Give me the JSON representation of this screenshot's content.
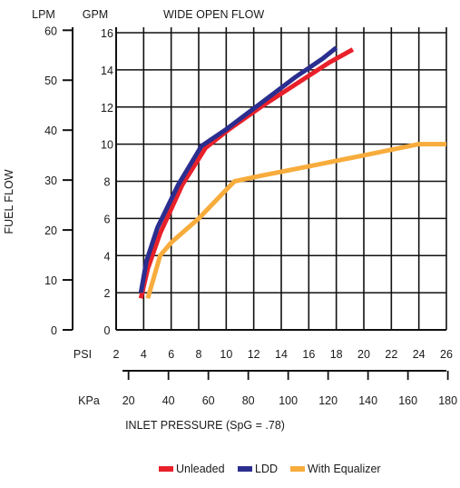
{
  "chart_data": {
    "type": "line",
    "title": "WIDE OPEN FLOW",
    "ylabel": "FUEL FLOW",
    "xlabel": "INLET PRESSURE (SpG = .78)",
    "y_axis_gpm": {
      "unit": "GPM",
      "range": [
        0,
        16
      ],
      "ticks": [
        "0",
        "2",
        "4",
        "6",
        "8",
        "10",
        "12",
        "14",
        "16"
      ]
    },
    "y_axis_lpm": {
      "unit": "LPM",
      "range": [
        0,
        60.6
      ],
      "ticks": [
        {
          "label": "0",
          "value": 0
        },
        {
          "label": "10",
          "value": 10
        },
        {
          "label": "20",
          "value": 20
        },
        {
          "label": "30",
          "value": 30
        },
        {
          "label": "40",
          "value": 40
        },
        {
          "label": "50",
          "value": 50
        },
        {
          "label": "60",
          "value": 60
        }
      ]
    },
    "x_axis_psi": {
      "unit": "PSI",
      "range": [
        2,
        26
      ],
      "ticks": [
        "2",
        "4",
        "6",
        "8",
        "10",
        "12",
        "14",
        "16",
        "18",
        "20",
        "22",
        "24",
        "26"
      ]
    },
    "x_axis_kpa": {
      "unit": "KPa",
      "ticks": [
        {
          "label": "20",
          "value": 20
        },
        {
          "label": "40",
          "value": 40
        },
        {
          "label": "60",
          "value": 60
        },
        {
          "label": "80",
          "value": 80
        },
        {
          "label": "100",
          "value": 100
        },
        {
          "label": "120",
          "value": 120
        },
        {
          "label": "140",
          "value": 140
        },
        {
          "label": "160",
          "value": 160
        },
        {
          "label": "180",
          "value": 180
        }
      ]
    },
    "grid": true,
    "legend_position": "bottom",
    "series": [
      {
        "name": "Unleaded",
        "color": "#e8202a",
        "x": [
          3.8,
          4.3,
          5.2,
          6.8,
          8.5,
          10.2,
          12.5,
          15.0,
          17.5,
          19.2
        ],
        "y": [
          1.7,
          3.3,
          5.2,
          7.8,
          9.8,
          10.8,
          12.0,
          13.2,
          14.4,
          15.1
        ]
      },
      {
        "name": "LDD",
        "color": "#2b2e8f",
        "x": [
          3.8,
          4.2,
          5.0,
          6.5,
          8.2,
          10.0,
          12.5,
          15.0,
          17.0,
          18.0
        ],
        "y": [
          2.0,
          3.7,
          5.5,
          7.8,
          9.9,
          10.8,
          12.2,
          13.6,
          14.6,
          15.2
        ]
      },
      {
        "name": "With Equalizer",
        "color": "#f7ac3c",
        "x": [
          4.3,
          5.2,
          6.0,
          8.0,
          10.6,
          12.5,
          16.0,
          20.0,
          24.0,
          26.0
        ],
        "y": [
          1.7,
          4.0,
          4.7,
          6.0,
          8.0,
          8.3,
          8.8,
          9.4,
          10.0,
          10.0
        ]
      }
    ]
  }
}
